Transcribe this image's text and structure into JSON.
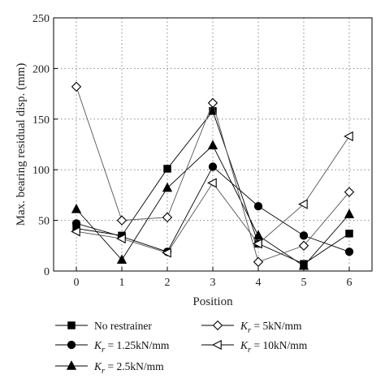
{
  "chart_data": {
    "type": "line",
    "xlabel": "Position",
    "ylabel": "Max. bearing residual disp. (mm)",
    "x": [
      0,
      1,
      2,
      3,
      4,
      5,
      6
    ],
    "xlim": [
      -0.5,
      6.5
    ],
    "ylim": [
      0,
      250
    ],
    "xticks": [
      "0",
      "1",
      "2",
      "3",
      "4",
      "5",
      "6"
    ],
    "yticks": [
      "0",
      "50",
      "100",
      "150",
      "200",
      "250"
    ],
    "grid": true,
    "legend_position": "bottom",
    "series": [
      {
        "name": "No restrainer",
        "marker": "square-filled",
        "color": "#000000",
        "values": [
          42,
          35,
          101,
          158,
          27,
          7,
          37
        ]
      },
      {
        "name": "K_r = 1.25kN/mm",
        "marker": "circle-filled",
        "color": "#000000",
        "values": [
          47,
          34,
          19,
          103,
          64,
          35,
          19
        ]
      },
      {
        "name": "K_r = 2.5kN/mm",
        "marker": "triangle-up-filled",
        "color": "#000000",
        "values": [
          61,
          11,
          82,
          124,
          35,
          5,
          56
        ]
      },
      {
        "name": "K_r = 5kN/mm",
        "marker": "diamond-open",
        "color": "#000000",
        "values": [
          182,
          50,
          53,
          166,
          9,
          25,
          78
        ]
      },
      {
        "name": "K_r = 10kN/mm",
        "marker": "triangle-left-open",
        "color": "#000000",
        "values": [
          39,
          32,
          18,
          87,
          27,
          66,
          133
        ]
      }
    ],
    "legend": [
      {
        "marker": "square-filled",
        "main": "No restrainer",
        "prefix": "",
        "subscript": "",
        "suffix": ""
      },
      {
        "marker": "circle-filled",
        "main": "",
        "prefix": "K",
        "subscript": "r",
        "suffix": " = 1.25kN/mm"
      },
      {
        "marker": "triangle-up-filled",
        "main": "",
        "prefix": "K",
        "subscript": "r",
        "suffix": " = 2.5kN/mm"
      },
      {
        "marker": "diamond-open",
        "main": "",
        "prefix": "K",
        "subscript": "r",
        "suffix": " = 5kN/mm"
      },
      {
        "marker": "triangle-left-open",
        "main": "",
        "prefix": "K",
        "subscript": "r",
        "suffix": " = 10kN/mm"
      }
    ]
  }
}
